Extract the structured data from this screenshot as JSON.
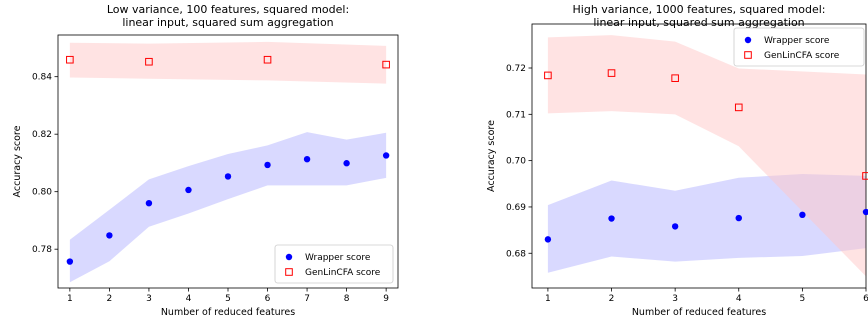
{
  "chart_data": [
    {
      "type": "scatter",
      "title_lines": [
        "Low variance, 100 features, squared model:",
        "linear input, squared sum aggregation"
      ],
      "xlabel": "Number of reduced features",
      "ylabel": "Accuracy score",
      "xlim": [
        0.7,
        9.3
      ],
      "ylim": [
        0.7665,
        0.8545
      ],
      "xticks": [
        1,
        2,
        3,
        4,
        5,
        6,
        7,
        8,
        9
      ],
      "yticks": [
        0.78,
        0.8,
        0.82,
        0.84
      ],
      "ytick_labels": [
        "0.78",
        "0.80",
        "0.82",
        "0.84"
      ],
      "legend_position": "lower-right",
      "series": [
        {
          "name": "Wrapper score",
          "marker": "filled-circle",
          "color": "#0000ff",
          "band_color": "#b4b4ff",
          "x": [
            1,
            2,
            3,
            4,
            5,
            6,
            7,
            8,
            9
          ],
          "y": [
            0.7757,
            0.7848,
            0.796,
            0.8006,
            0.8053,
            0.8093,
            0.8113,
            0.8099,
            0.8126
          ],
          "band_lower": [
            0.7685,
            0.7758,
            0.7878,
            0.7924,
            0.7974,
            0.8022,
            0.8022,
            0.8022,
            0.8048
          ],
          "band_upper": [
            0.7833,
            0.7937,
            0.8043,
            0.8089,
            0.8131,
            0.8161,
            0.8207,
            0.8181,
            0.8205
          ]
        },
        {
          "name": "GenLinCFA score",
          "marker": "open-square",
          "color": "#ff0000",
          "band_color": "#ffc8c8",
          "x": [
            1,
            3,
            6,
            9
          ],
          "y": [
            0.8459,
            0.8452,
            0.8459,
            0.8442
          ],
          "band_lower": [
            0.8397,
            0.8393,
            0.8387,
            0.8376
          ],
          "band_upper": [
            0.8518,
            0.8515,
            0.8521,
            0.8507
          ]
        }
      ]
    },
    {
      "type": "scatter",
      "title_lines": [
        "High variance, 1000 features, squared model:",
        "linear input, squared sum aggregation"
      ],
      "xlabel": "Number of reduced features",
      "ylabel": "Accuracy score",
      "xlim": [
        0.75,
        6.0
      ],
      "ylim": [
        0.6725,
        0.7295
      ],
      "xticks": [
        1,
        2,
        3,
        4,
        5,
        6
      ],
      "yticks": [
        0.68,
        0.69,
        0.7,
        0.71,
        0.72
      ],
      "ytick_labels": [
        "0.68",
        "0.69",
        "0.70",
        "0.71",
        "0.72"
      ],
      "legend_position": "top-right",
      "series": [
        {
          "name": "Wrapper score",
          "marker": "filled-circle",
          "color": "#0000ff",
          "band_color": "#b4b4ff",
          "x": [
            1,
            2,
            3,
            4,
            5,
            6
          ],
          "y": [
            0.683,
            0.6875,
            0.6858,
            0.6876,
            0.6883,
            0.6889
          ],
          "band_lower": [
            0.6758,
            0.6793,
            0.6782,
            0.679,
            0.6794,
            0.6811
          ],
          "band_upper": [
            0.6904,
            0.6957,
            0.6935,
            0.6963,
            0.6971,
            0.6967
          ]
        },
        {
          "name": "GenLinCFA score",
          "marker": "open-square",
          "color": "#ff0000",
          "band_color": "#ffc8c8",
          "x": [
            1,
            2,
            3,
            4,
            6
          ],
          "y": [
            0.7184,
            0.7189,
            0.7178,
            0.7115,
            0.6967
          ],
          "band_lower": [
            0.7102,
            0.7107,
            0.71,
            0.7031,
            0.675
          ],
          "band_upper": [
            0.7266,
            0.7271,
            0.7257,
            0.7199,
            0.7186
          ]
        }
      ]
    }
  ]
}
